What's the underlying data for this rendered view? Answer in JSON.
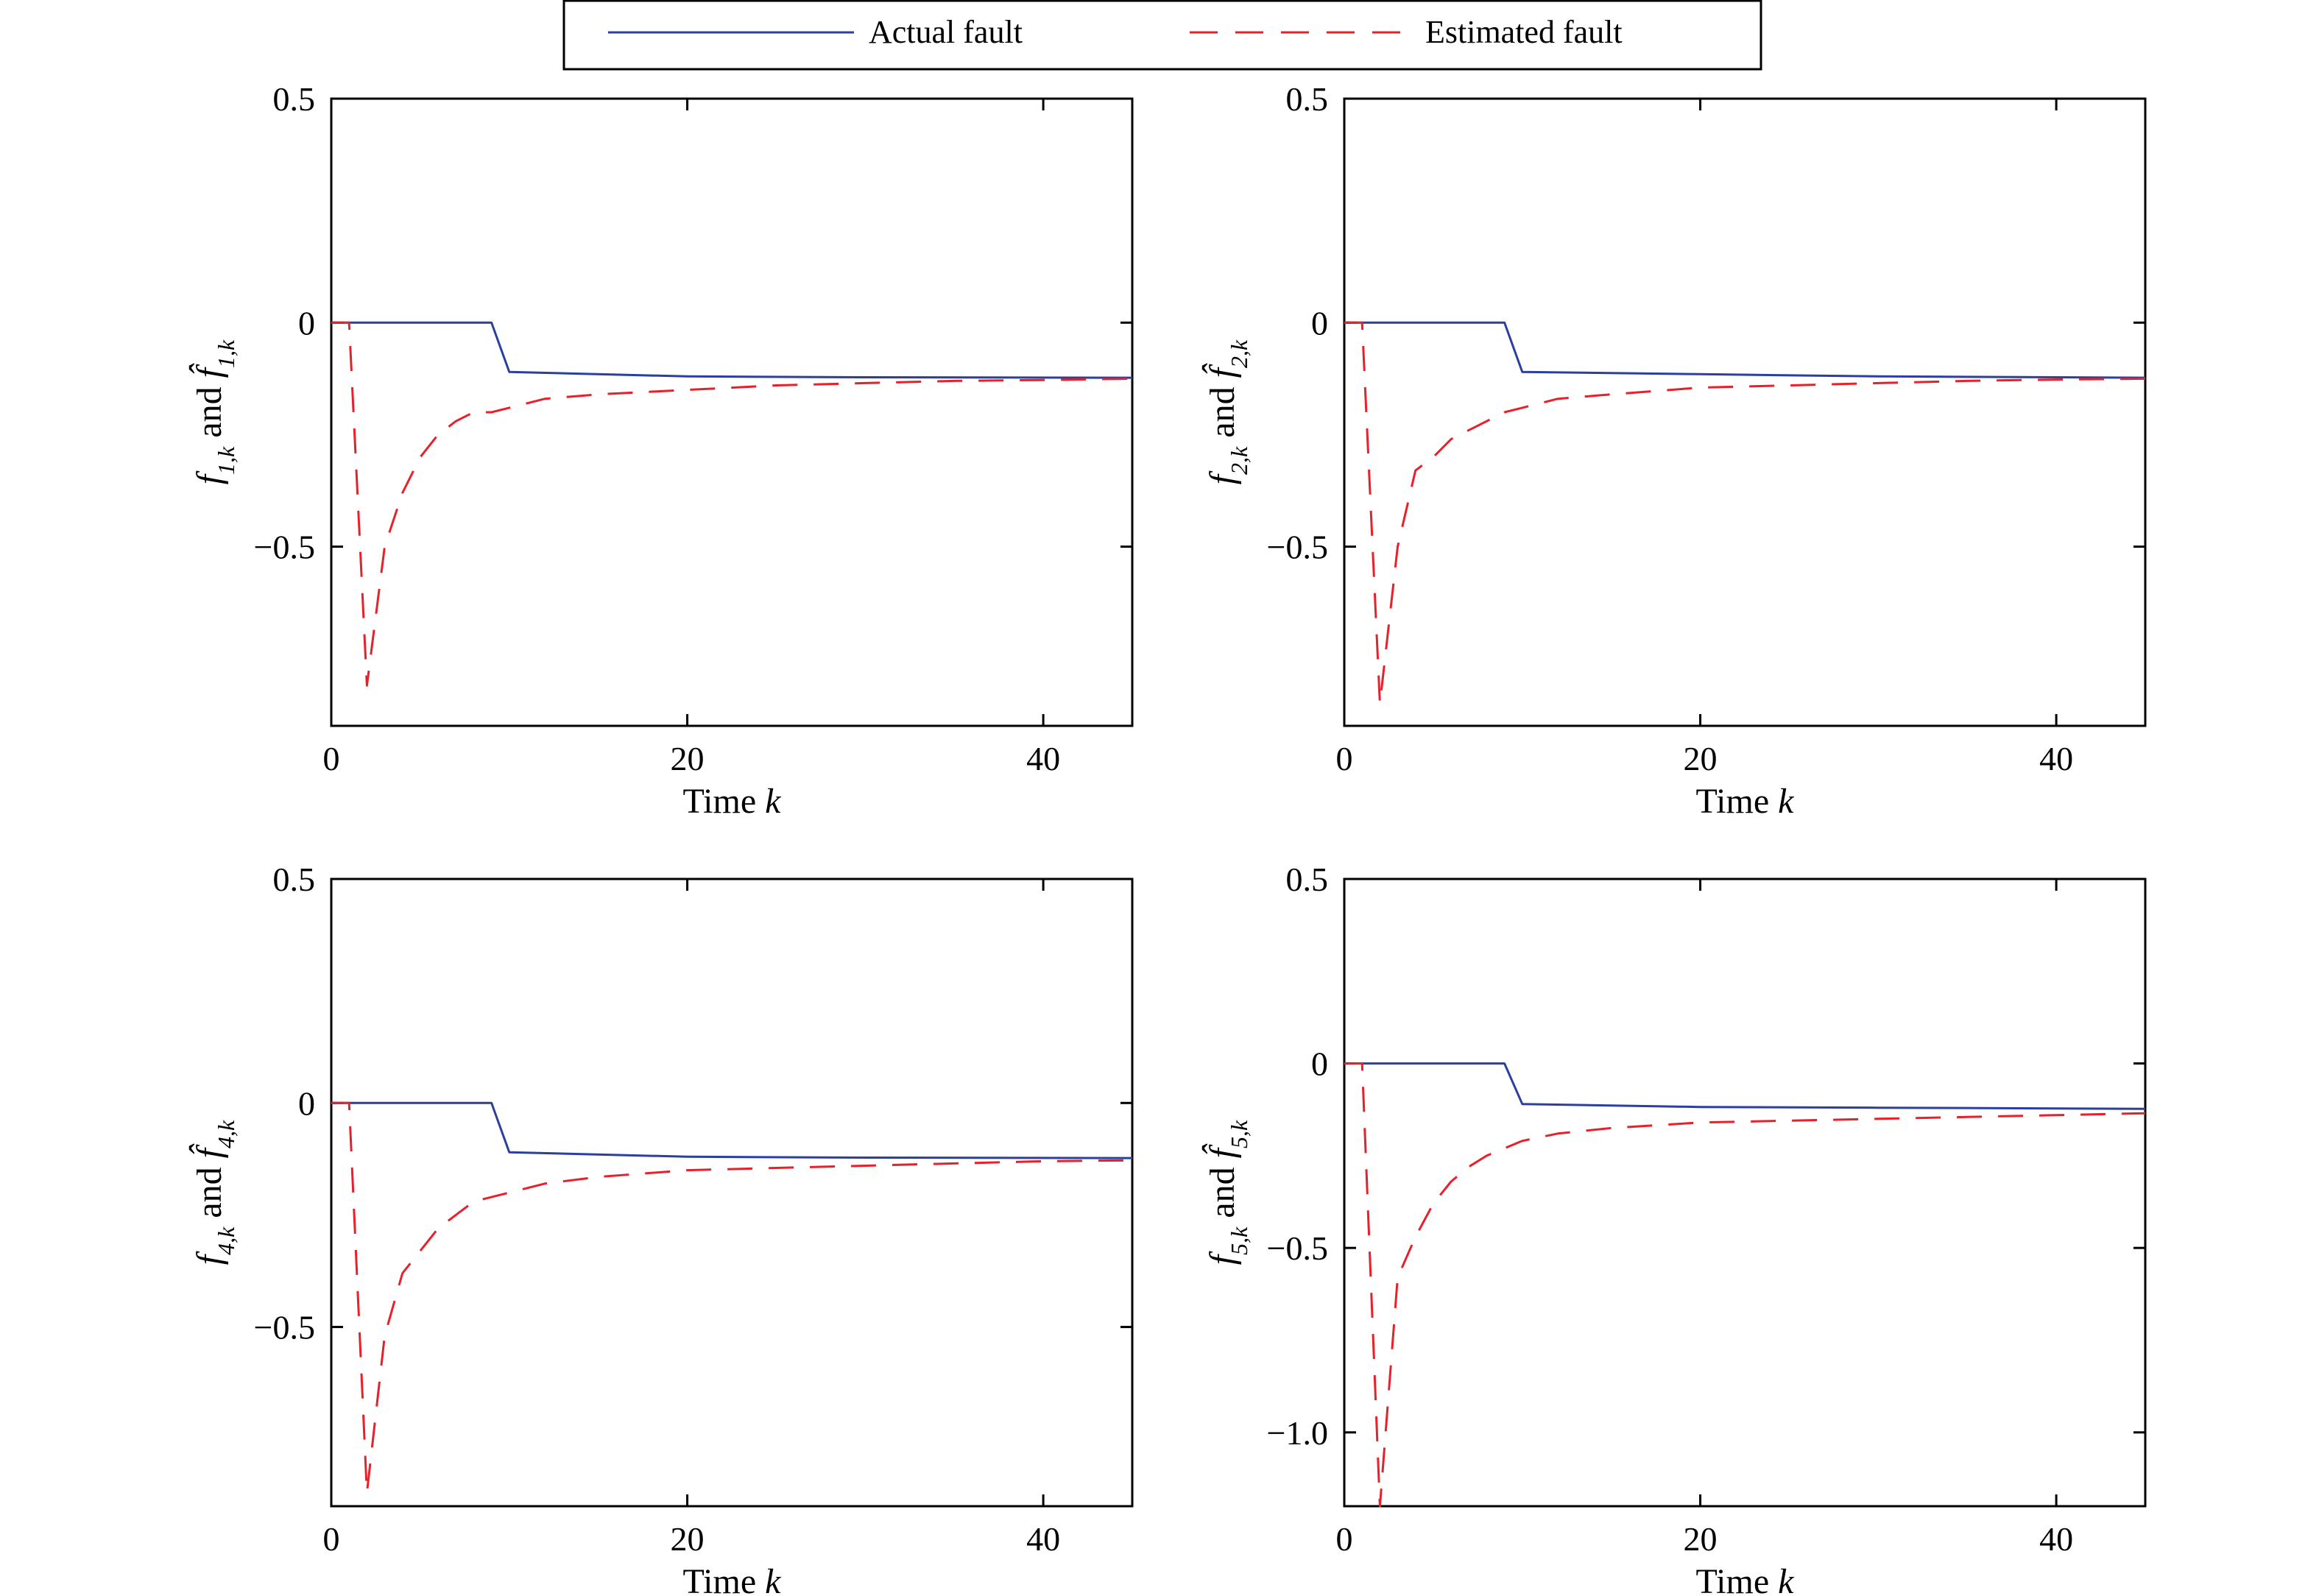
{
  "legend": {
    "items": [
      {
        "label": "Actual fault",
        "color": "#2a3f9e",
        "dash": "solid"
      },
      {
        "label": "Estimated fault",
        "color": "#e8202a",
        "dash": "dashed"
      }
    ],
    "placement": "top-center"
  },
  "chart_data": [
    {
      "type": "line",
      "ylabel_parts": {
        "f": "f",
        "sub": "1,k",
        "and": "and"
      },
      "xlabel": {
        "text": "Time ",
        "var": "k"
      },
      "xlim": [
        0,
        45
      ],
      "ylim": [
        -0.9,
        0.5
      ],
      "xticks": [
        0,
        20,
        40
      ],
      "xtick_labels": [
        "0",
        "20",
        "40"
      ],
      "yticks": [
        0.5,
        0,
        -0.5
      ],
      "ytick_labels": [
        "0.5",
        "0",
        "−0.5"
      ],
      "series": [
        {
          "name": "Actual fault",
          "color": "#2a3f9e",
          "dash": "solid",
          "x": [
            0,
            9,
            10,
            20,
            30,
            45
          ],
          "y": [
            0,
            0,
            -0.11,
            -0.12,
            -0.122,
            -0.123
          ]
        },
        {
          "name": "Estimated fault",
          "color": "#e8202a",
          "dash": "dashed",
          "x": [
            0,
            1,
            2,
            3,
            4,
            5,
            6,
            7,
            8,
            9,
            10,
            12,
            15,
            20,
            25,
            30,
            35,
            40,
            45
          ],
          "y": [
            0,
            0,
            -0.81,
            -0.5,
            -0.38,
            -0.3,
            -0.25,
            -0.22,
            -0.2,
            -0.2,
            -0.19,
            -0.17,
            -0.16,
            -0.15,
            -0.14,
            -0.135,
            -0.13,
            -0.128,
            -0.125
          ]
        }
      ]
    },
    {
      "type": "line",
      "ylabel_parts": {
        "f": "f",
        "sub": "2,k",
        "and": "and"
      },
      "xlabel": {
        "text": "Time ",
        "var": "k"
      },
      "xlim": [
        0,
        45
      ],
      "ylim": [
        -0.9,
        0.5
      ],
      "xticks": [
        0,
        20,
        40
      ],
      "xtick_labels": [
        "0",
        "20",
        "40"
      ],
      "yticks": [
        0.5,
        0,
        -0.5
      ],
      "ytick_labels": [
        "0.5",
        "0",
        "−0.5"
      ],
      "series": [
        {
          "name": "Actual fault",
          "color": "#2a3f9e",
          "dash": "solid",
          "x": [
            0,
            9,
            10,
            20,
            30,
            45
          ],
          "y": [
            0,
            0,
            -0.11,
            -0.115,
            -0.12,
            -0.123
          ]
        },
        {
          "name": "Estimated fault",
          "color": "#e8202a",
          "dash": "dashed",
          "x": [
            0,
            1,
            2,
            3,
            4,
            5,
            6,
            7,
            8,
            9,
            10,
            12,
            15,
            20,
            25,
            30,
            35,
            40,
            45
          ],
          "y": [
            0,
            0,
            -0.85,
            -0.5,
            -0.33,
            -0.3,
            -0.26,
            -0.24,
            -0.22,
            -0.2,
            -0.19,
            -0.17,
            -0.16,
            -0.145,
            -0.14,
            -0.135,
            -0.13,
            -0.127,
            -0.125
          ]
        }
      ]
    },
    {
      "type": "line",
      "ylabel_parts": {
        "f": "f",
        "sub": "4,k",
        "and": "and"
      },
      "xlabel": {
        "text": "Time ",
        "var": "k"
      },
      "xlim": [
        0,
        45
      ],
      "ylim": [
        -0.9,
        0.5
      ],
      "xticks": [
        0,
        20,
        40
      ],
      "xtick_labels": [
        "0",
        "20",
        "40"
      ],
      "yticks": [
        0.5,
        0,
        -0.5
      ],
      "ytick_labels": [
        "0.5",
        "0",
        "−0.5"
      ],
      "series": [
        {
          "name": "Actual fault",
          "color": "#2a3f9e",
          "dash": "solid",
          "x": [
            0,
            9,
            10,
            20,
            30,
            45
          ],
          "y": [
            0,
            0,
            -0.11,
            -0.12,
            -0.122,
            -0.123
          ]
        },
        {
          "name": "Estimated fault",
          "color": "#e8202a",
          "dash": "dashed",
          "x": [
            0,
            1,
            2,
            3,
            4,
            5,
            6,
            7,
            8,
            9,
            10,
            12,
            15,
            20,
            25,
            30,
            35,
            40,
            45
          ],
          "y": [
            0,
            0,
            -0.87,
            -0.52,
            -0.38,
            -0.33,
            -0.28,
            -0.25,
            -0.22,
            -0.21,
            -0.2,
            -0.18,
            -0.165,
            -0.15,
            -0.145,
            -0.14,
            -0.135,
            -0.13,
            -0.128
          ]
        }
      ]
    },
    {
      "type": "line",
      "ylabel_parts": {
        "f": "f",
        "sub": "5,k",
        "and": "and"
      },
      "xlabel": {
        "text": "Time ",
        "var": "k"
      },
      "xlim": [
        0,
        45
      ],
      "ylim": [
        -1.2,
        0.5
      ],
      "xticks": [
        0,
        20,
        40
      ],
      "xtick_labels": [
        "0",
        "20",
        "40"
      ],
      "yticks": [
        0.5,
        0,
        -0.5,
        -1.0
      ],
      "ytick_labels": [
        "0.5",
        "0",
        "−0.5",
        "−1.0"
      ],
      "series": [
        {
          "name": "Actual fault",
          "color": "#2a3f9e",
          "dash": "solid",
          "x": [
            0,
            9,
            10,
            20,
            30,
            45
          ],
          "y": [
            0,
            0,
            -0.11,
            -0.118,
            -0.12,
            -0.123
          ]
        },
        {
          "name": "Estimated fault",
          "color": "#e8202a",
          "dash": "dashed",
          "x": [
            0,
            1,
            2,
            3,
            4,
            5,
            6,
            7,
            8,
            9,
            10,
            12,
            15,
            20,
            25,
            30,
            35,
            40,
            45
          ],
          "y": [
            0,
            0,
            -1.2,
            -0.58,
            -0.47,
            -0.38,
            -0.32,
            -0.28,
            -0.25,
            -0.23,
            -0.21,
            -0.19,
            -0.175,
            -0.16,
            -0.155,
            -0.15,
            -0.145,
            -0.14,
            -0.135
          ]
        }
      ]
    }
  ]
}
